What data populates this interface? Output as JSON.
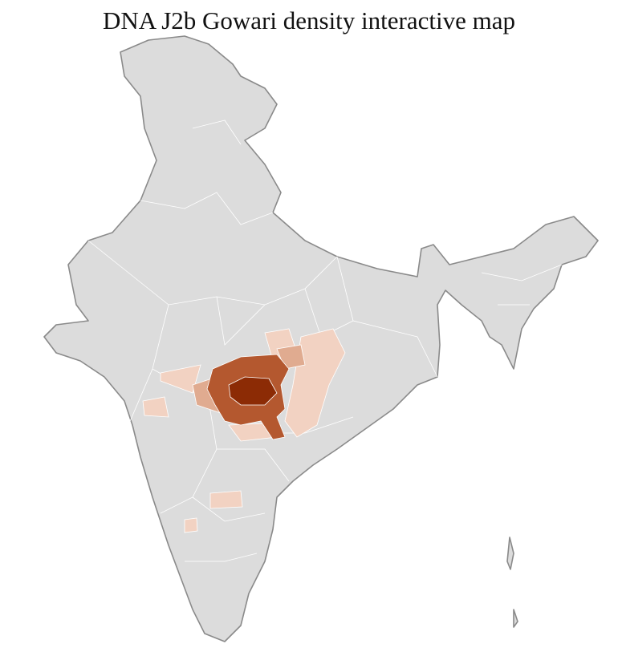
{
  "title": "DNA J2b Gowari density interactive map"
}
